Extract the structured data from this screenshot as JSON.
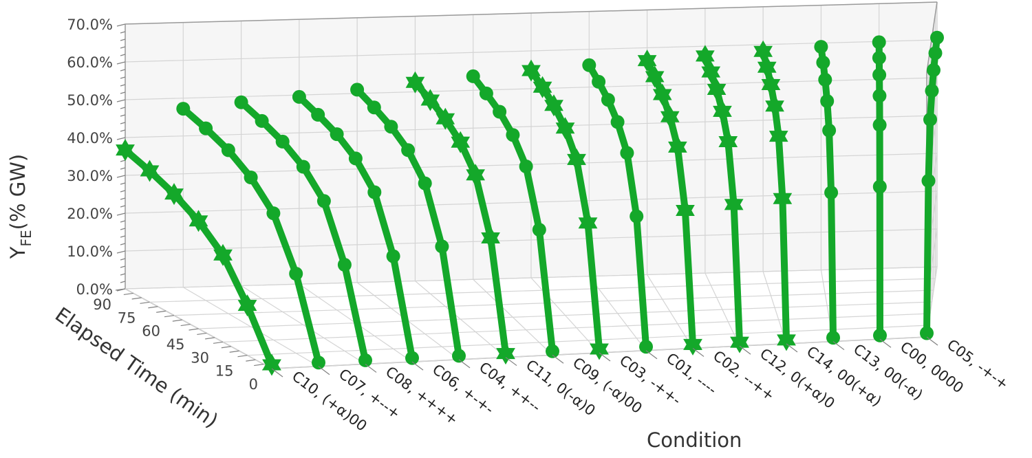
{
  "chart_data": {
    "type": "line3d",
    "xlabel": "Condition",
    "ylabel": "Elapsed Time (min)",
    "zlabel_main": "Y",
    "zlabel_sub": "FE",
    "zlabel_rest": "(% GW)",
    "zlim": [
      0,
      0.7
    ],
    "z_ticks": [
      "0.0%",
      "10.0%",
      "20.0%",
      "30.0%",
      "40.0%",
      "50.0%",
      "60.0%",
      "70.0%"
    ],
    "time_ticks": [
      "0",
      "15",
      "30",
      "45",
      "60",
      "75",
      "90"
    ],
    "time_values": [
      0,
      15,
      30,
      45,
      60,
      75,
      90
    ],
    "colors": {
      "line": "#14a82a",
      "marker": "#14a82a"
    },
    "series": [
      {
        "name": "C10, (+α)00",
        "marker": "star",
        "values": [
          0.01,
          0.132,
          0.23,
          0.285,
          0.321,
          0.347,
          0.367
        ]
      },
      {
        "name": "C07, +--+",
        "marker": "circle",
        "values": [
          0.01,
          0.21,
          0.335,
          0.395,
          0.432,
          0.455,
          0.472
        ]
      },
      {
        "name": "C08, ++++",
        "marker": "circle",
        "values": [
          0.01,
          0.228,
          0.362,
          0.418,
          0.45,
          0.47,
          0.485
        ]
      },
      {
        "name": "C06, +-+-",
        "marker": "circle",
        "values": [
          0.01,
          0.245,
          0.38,
          0.435,
          0.465,
          0.482,
          0.495
        ]
      },
      {
        "name": "C04, ++--",
        "marker": "circle",
        "values": [
          0.01,
          0.265,
          0.398,
          0.452,
          0.48,
          0.497,
          0.51
        ]
      },
      {
        "name": "C11, 0(-α)0",
        "marker": "star",
        "values": [
          0.01,
          0.282,
          0.415,
          0.468,
          0.496,
          0.512,
          0.525
        ]
      },
      {
        "name": "C09, (-α)00",
        "marker": "circle",
        "values": [
          0.01,
          0.298,
          0.432,
          0.482,
          0.51,
          0.525,
          0.537
        ]
      },
      {
        "name": "C03, -++-",
        "marker": "star",
        "values": [
          0.01,
          0.31,
          0.445,
          0.495,
          0.522,
          0.537,
          0.548
        ]
      },
      {
        "name": "C01, ----",
        "marker": "circle",
        "values": [
          0.01,
          0.322,
          0.457,
          0.506,
          0.532,
          0.547,
          0.558
        ]
      },
      {
        "name": "C02, --++",
        "marker": "star",
        "values": [
          0.01,
          0.332,
          0.467,
          0.515,
          0.541,
          0.556,
          0.566
        ]
      },
      {
        "name": "C12, 0(+α)0",
        "marker": "star",
        "values": [
          0.01,
          0.342,
          0.476,
          0.524,
          0.55,
          0.564,
          0.574
        ]
      },
      {
        "name": "C14, 00(+α)",
        "marker": "star",
        "values": [
          0.01,
          0.352,
          0.485,
          0.533,
          0.558,
          0.572,
          0.582
        ]
      },
      {
        "name": "C13, 00(-α)",
        "marker": "circle",
        "values": [
          0.01,
          0.362,
          0.495,
          0.541,
          0.566,
          0.58,
          0.59
        ]
      },
      {
        "name": "C00, 0000",
        "marker": "circle",
        "values": [
          0.01,
          0.372,
          0.504,
          0.55,
          0.574,
          0.588,
          0.598
        ]
      },
      {
        "name": "C05, -+-+",
        "marker": "circle",
        "values": [
          0.01,
          0.382,
          0.513,
          0.558,
          0.582,
          0.596,
          0.606
        ]
      }
    ]
  }
}
